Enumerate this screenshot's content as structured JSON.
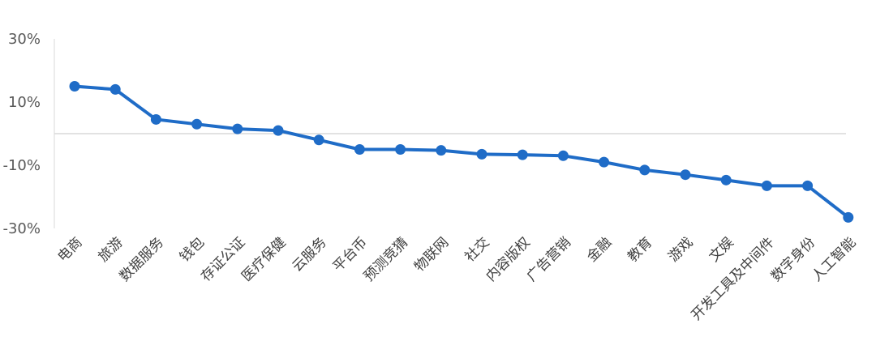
{
  "chart_data": {
    "type": "line",
    "title": "",
    "xlabel": "",
    "ylabel": "",
    "ylim": [
      -30,
      30
    ],
    "yticks": [
      "30%",
      "10%",
      "-10%",
      "-30%"
    ],
    "ytick_values": [
      30,
      10,
      -10,
      -30
    ],
    "grid": false,
    "legend": "none",
    "categories": [
      "电商",
      "旅游",
      "数据服务",
      "钱包",
      "存证公证",
      "医疗保健",
      "云服务",
      "平台币",
      "预测竞猜",
      "物联网",
      "社交",
      "内容版权",
      "广告营销",
      "金融",
      "教育",
      "游戏",
      "文娱",
      "开发工具及中间件",
      "数字身份",
      "人工智能"
    ],
    "series": [
      {
        "values": [
          15,
          14,
          4.5,
          3,
          1.5,
          1,
          -2,
          -5,
          -5,
          -5.3,
          -6.5,
          -6.7,
          -7,
          -9,
          -11.5,
          -13,
          -14.7,
          -16.5,
          -16.5,
          -26.5
        ]
      }
    ],
    "colors": {
      "line": "#1f6cc7",
      "axis": "#d9d9d9"
    }
  }
}
